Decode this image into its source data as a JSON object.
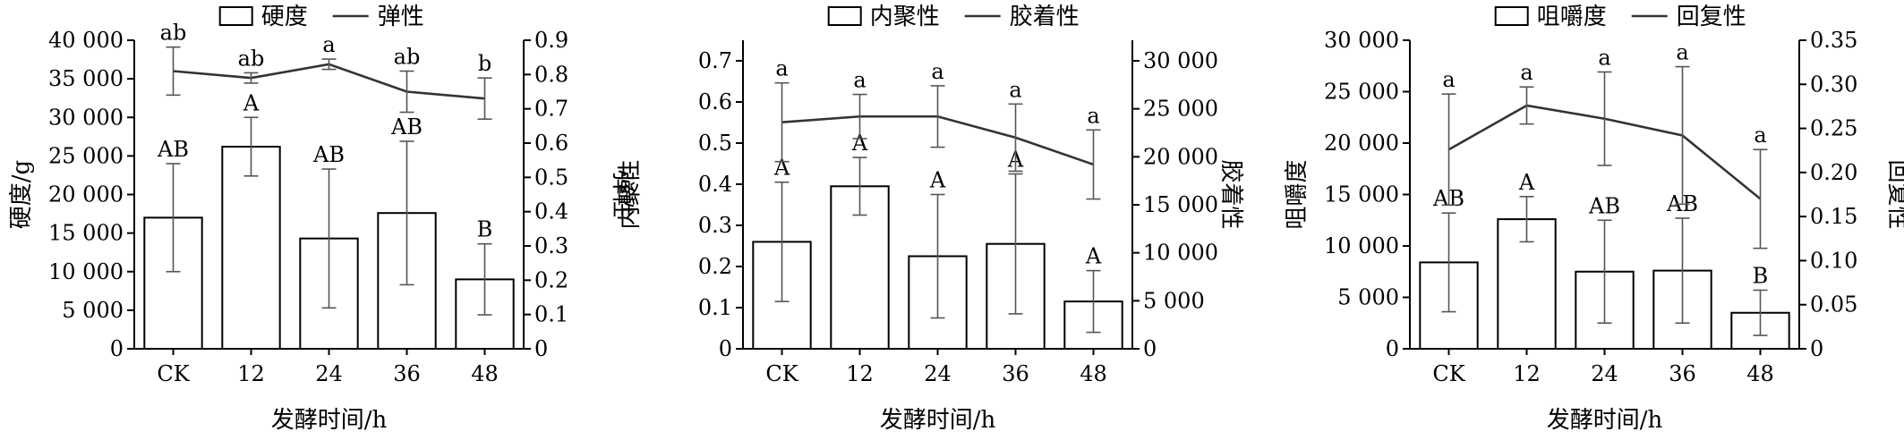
{
  "chart_data": [
    {
      "type": "bar",
      "xlabel": "发酵时间/h",
      "ylabel_left": "硬度/g",
      "ylabel_right": "弹性",
      "categories": [
        "CK",
        "12",
        "24",
        "36",
        "48"
      ],
      "left_ylim": [
        0,
        40000
      ],
      "left_ticks": [
        0,
        5000,
        10000,
        15000,
        20000,
        25000,
        30000,
        35000,
        40000
      ],
      "left_tick_labels": [
        "0",
        "5 000",
        "10 000",
        "15 000",
        "20 000",
        "25 000",
        "30 000",
        "35 000",
        "40 000"
      ],
      "right_ylim": [
        0,
        0.9
      ],
      "right_ticks": [
        0,
        0.1,
        0.2,
        0.3,
        0.4,
        0.5,
        0.6,
        0.7,
        0.8,
        0.9
      ],
      "right_tick_labels": [
        "0",
        "0.1",
        "0.2",
        "0.3",
        "0.4",
        "0.5",
        "0.6",
        "0.7",
        "0.8",
        "0.9"
      ],
      "legend": {
        "bar": "硬度",
        "line": "弹性",
        "position": "top"
      },
      "bar_series": {
        "name": "硬度",
        "values": [
          17000,
          26200,
          14300,
          17600,
          9000
        ],
        "errors": [
          7000,
          3800,
          9000,
          9300,
          4600
        ],
        "labels": [
          "AB",
          "A",
          "AB",
          "AB",
          "B"
        ]
      },
      "line_series": {
        "name": "弹性",
        "values": [
          0.81,
          0.79,
          0.83,
          0.75,
          0.73
        ],
        "errors": [
          0.07,
          0.015,
          0.015,
          0.06,
          0.06
        ],
        "labels": [
          "ab",
          "ab",
          "a",
          "ab",
          "b"
        ]
      }
    },
    {
      "type": "bar",
      "xlabel": "发酵时间/h",
      "ylabel_left": "内聚性",
      "ylabel_right": "胶着性",
      "categories": [
        "CK",
        "12",
        "24",
        "36",
        "48"
      ],
      "left_ylim": [
        0,
        0.75
      ],
      "left_ticks": [
        0,
        0.1,
        0.2,
        0.3,
        0.4,
        0.5,
        0.6,
        0.7
      ],
      "left_tick_labels": [
        "0",
        "0.1",
        "0.2",
        "0.3",
        "0.4",
        "0.5",
        "0.6",
        "0.7"
      ],
      "right_ylim": [
        0,
        32143
      ],
      "right_ticks": [
        0,
        5000,
        10000,
        15000,
        20000,
        25000,
        30000
      ],
      "right_tick_labels": [
        "0",
        "5 000",
        "10 000",
        "15 000",
        "20 000",
        "25 000",
        "30 000"
      ],
      "legend": {
        "bar": "内聚性",
        "line": "胶着性",
        "position": "top"
      },
      "bar_series": {
        "name": "内聚性",
        "values": [
          0.26,
          0.395,
          0.225,
          0.255,
          0.115
        ],
        "errors": [
          0.145,
          0.07,
          0.15,
          0.17,
          0.075
        ],
        "labels": [
          "A",
          "A",
          "A",
          "A",
          "A"
        ]
      },
      "line_series": {
        "name": "胶着性",
        "values": [
          23600,
          24200,
          24200,
          22000,
          19200
        ],
        "errors": [
          4100,
          2300,
          3200,
          3500,
          3600
        ],
        "labels": [
          "a",
          "a",
          "a",
          "a",
          "a"
        ]
      }
    },
    {
      "type": "bar",
      "xlabel": "发酵时间/h",
      "ylabel_left": "咀嚼度",
      "ylabel_right": "回复性",
      "categories": [
        "CK",
        "12",
        "24",
        "36",
        "48"
      ],
      "left_ylim": [
        0,
        30000
      ],
      "left_ticks": [
        0,
        5000,
        10000,
        15000,
        20000,
        25000,
        30000
      ],
      "left_tick_labels": [
        "0",
        "5 000",
        "10 000",
        "15 000",
        "20 000",
        "25 000",
        "30 000"
      ],
      "right_ylim": [
        0,
        0.35
      ],
      "right_ticks": [
        0,
        0.05,
        0.1,
        0.15,
        0.2,
        0.25,
        0.3,
        0.35
      ],
      "right_tick_labels": [
        "0",
        "0.05",
        "0.10",
        "0.15",
        "0.20",
        "0.25",
        "0.30",
        "0.35"
      ],
      "legend": {
        "bar": "咀嚼度",
        "line": "回复性",
        "position": "top"
      },
      "bar_series": {
        "name": "咀嚼度",
        "values": [
          8400,
          12600,
          7500,
          7600,
          3500
        ],
        "errors": [
          4800,
          2200,
          5000,
          5100,
          2200
        ],
        "labels": [
          "AB",
          "A",
          "AB",
          "AB",
          "B"
        ]
      },
      "line_series": {
        "name": "回复性",
        "values": [
          0.226,
          0.276,
          0.261,
          0.242,
          0.17
        ],
        "errors": [
          0.063,
          0.021,
          0.053,
          0.078,
          0.056
        ],
        "labels": [
          "a",
          "a",
          "a",
          "a",
          "a"
        ]
      }
    }
  ]
}
